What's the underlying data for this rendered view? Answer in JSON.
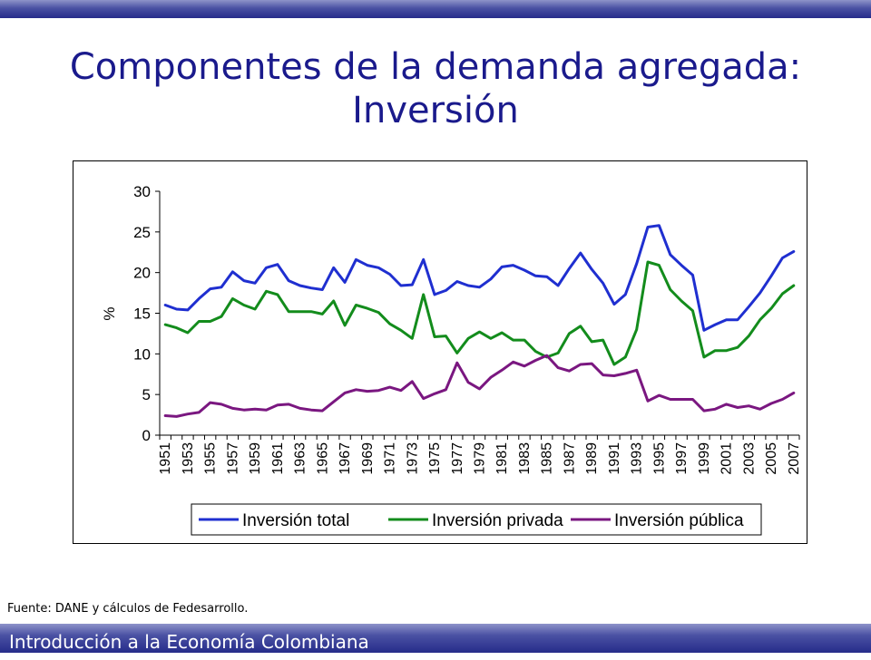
{
  "slide": {
    "title_line1": "Componentes de la demanda agregada:",
    "title_line2": "Inversión",
    "footer": "Introducción a la Economía Colombiana",
    "source": "Fuente: DANE y cálculos de Fedesarrollo."
  },
  "colors": {
    "title": "#1a1a8c",
    "bar": "#262c8a",
    "total": "#1f2fd0",
    "privada": "#138c1c",
    "publica": "#7a1780"
  },
  "chart_data": {
    "type": "line",
    "title": "",
    "xlabel": "",
    "ylabel": "%",
    "ylim": [
      0,
      30
    ],
    "yticks": [
      0,
      5,
      10,
      15,
      20,
      25,
      30
    ],
    "x": [
      1951,
      1952,
      1953,
      1954,
      1955,
      1956,
      1957,
      1958,
      1959,
      1960,
      1961,
      1962,
      1963,
      1964,
      1965,
      1966,
      1967,
      1968,
      1969,
      1970,
      1971,
      1972,
      1973,
      1974,
      1975,
      1976,
      1977,
      1978,
      1979,
      1980,
      1981,
      1982,
      1983,
      1984,
      1985,
      1986,
      1987,
      1988,
      1989,
      1990,
      1991,
      1992,
      1993,
      1994,
      1995,
      1996,
      1997,
      1998,
      1999,
      2000,
      2001,
      2002,
      2003,
      2004,
      2005,
      2006,
      2007
    ],
    "xticks": [
      "1951",
      "1953",
      "1955",
      "1957",
      "1959",
      "1961",
      "1963",
      "1965",
      "1967",
      "1969",
      "1971",
      "1973",
      "1975",
      "1977",
      "1979",
      "1981",
      "1983",
      "1985",
      "1987",
      "1989",
      "1991",
      "1993",
      "1995",
      "1997",
      "1999",
      "2001",
      "2003",
      "2005",
      "2007"
    ],
    "grid": false,
    "legend_position": "bottom",
    "series": [
      {
        "name": "Inversión total",
        "color": "#1f2fd0",
        "values": [
          16.0,
          15.5,
          15.4,
          16.8,
          18.0,
          18.2,
          20.1,
          19.0,
          18.7,
          20.6,
          21.0,
          19.0,
          18.4,
          18.1,
          17.9,
          20.6,
          18.8,
          21.6,
          20.9,
          20.6,
          19.8,
          18.4,
          18.5,
          21.6,
          17.3,
          17.8,
          18.9,
          18.4,
          18.2,
          19.2,
          20.7,
          20.9,
          20.3,
          19.6,
          19.5,
          18.4,
          20.5,
          22.4,
          20.4,
          18.7,
          16.1,
          17.3,
          21.1,
          25.6,
          25.8,
          22.2,
          20.9,
          19.7,
          12.9,
          13.6,
          14.2,
          14.2,
          15.8,
          17.5,
          19.6,
          21.8,
          22.6
        ]
      },
      {
        "name": "Inversión privada",
        "color": "#138c1c",
        "values": [
          13.6,
          13.2,
          12.6,
          14.0,
          14.0,
          14.6,
          16.8,
          16.0,
          15.5,
          17.7,
          17.3,
          15.2,
          15.2,
          15.2,
          14.9,
          16.5,
          13.5,
          16.0,
          15.6,
          15.1,
          13.7,
          12.9,
          11.9,
          17.3,
          12.1,
          12.2,
          10.1,
          11.9,
          12.7,
          11.9,
          12.6,
          11.7,
          11.7,
          10.3,
          9.6,
          10.1,
          12.5,
          13.4,
          11.5,
          11.7,
          8.7,
          9.6,
          13.0,
          21.3,
          20.9,
          17.9,
          16.5,
          15.3,
          9.6,
          10.4,
          10.4,
          10.8,
          12.2,
          14.2,
          15.6,
          17.4,
          18.4
        ]
      },
      {
        "name": "Inversión pública",
        "color": "#7a1780",
        "values": [
          2.4,
          2.3,
          2.6,
          2.8,
          4.0,
          3.8,
          3.3,
          3.1,
          3.2,
          3.1,
          3.7,
          3.8,
          3.3,
          3.1,
          3.0,
          4.1,
          5.2,
          5.6,
          5.4,
          5.5,
          5.9,
          5.5,
          6.6,
          4.5,
          5.1,
          5.6,
          8.9,
          6.5,
          5.7,
          7.1,
          8.0,
          9.0,
          8.5,
          9.2,
          9.8,
          8.3,
          7.9,
          8.7,
          8.8,
          7.4,
          7.3,
          7.6,
          8.0,
          4.2,
          4.9,
          4.4,
          4.4,
          4.4,
          3.0,
          3.2,
          3.8,
          3.4,
          3.6,
          3.2,
          3.9,
          4.4,
          5.2
        ]
      }
    ]
  }
}
